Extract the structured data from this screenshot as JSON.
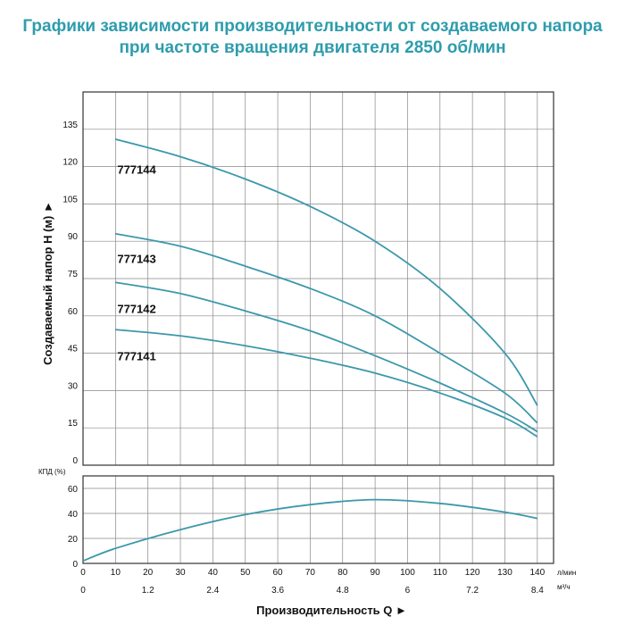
{
  "title_line1": "Графики зависимости производительности от создаваемого напора",
  "title_line2": "при частоте вращения двигателя 2850 об/мин",
  "chart_data": [
    {
      "type": "line",
      "ylabel": "Создаваемый напор H (м) ►",
      "ylim": [
        0,
        150
      ],
      "yticks": [
        0,
        15,
        30,
        45,
        60,
        75,
        90,
        105,
        120,
        135
      ],
      "xlim": [
        0,
        145
      ],
      "grid": true,
      "series": [
        {
          "name": "777144",
          "x": [
            10,
            30,
            50,
            70,
            90,
            110,
            130,
            140
          ],
          "y": [
            131,
            124,
            115,
            104,
            90,
            71,
            45,
            24
          ],
          "label_y": 119
        },
        {
          "name": "777143",
          "x": [
            10,
            30,
            50,
            70,
            90,
            110,
            130,
            140
          ],
          "y": [
            93,
            88,
            80,
            71,
            60,
            45,
            29,
            17
          ],
          "label_y": 83
        },
        {
          "name": "777142",
          "x": [
            10,
            30,
            50,
            70,
            90,
            110,
            130,
            140
          ],
          "y": [
            73.5,
            69,
            62,
            54,
            44,
            33,
            21,
            13.5
          ],
          "label_y": 63
        },
        {
          "name": "777141",
          "x": [
            10,
            30,
            50,
            70,
            90,
            110,
            130,
            140
          ],
          "y": [
            54.5,
            52,
            48,
            43,
            37,
            29,
            19,
            11.5
          ],
          "label_y": 44
        }
      ]
    },
    {
      "type": "line",
      "ylabel": "КПД (%)",
      "ylim": [
        0,
        70
      ],
      "yticks": [
        0,
        20,
        40,
        60
      ],
      "xlim": [
        0,
        145
      ],
      "grid": true,
      "series": [
        {
          "name": "",
          "x": [
            0,
            10,
            30,
            50,
            70,
            90,
            110,
            130,
            140
          ],
          "y": [
            2,
            12,
            27,
            39,
            47,
            51,
            48,
            41,
            36
          ]
        }
      ]
    }
  ],
  "x_axis": {
    "ticks": [
      0,
      10,
      20,
      30,
      40,
      50,
      60,
      70,
      80,
      90,
      100,
      110,
      120,
      130,
      140
    ],
    "unit": "л/мин",
    "secondary_ticks": [
      {
        "x": 0,
        "label": "0"
      },
      {
        "x": 20,
        "label": "1.2"
      },
      {
        "x": 40,
        "label": "2.4"
      },
      {
        "x": 60,
        "label": "3.6"
      },
      {
        "x": 80,
        "label": "4.8"
      },
      {
        "x": 100,
        "label": "6"
      },
      {
        "x": 120,
        "label": "7.2"
      },
      {
        "x": 140,
        "label": "8.4"
      }
    ],
    "secondary_unit": "м³/ч",
    "label": "Производительность Q ►"
  },
  "colors": {
    "curve": "#3c98ab",
    "grid": "#888888",
    "frame": "#333333",
    "title": "#2e9cad"
  }
}
